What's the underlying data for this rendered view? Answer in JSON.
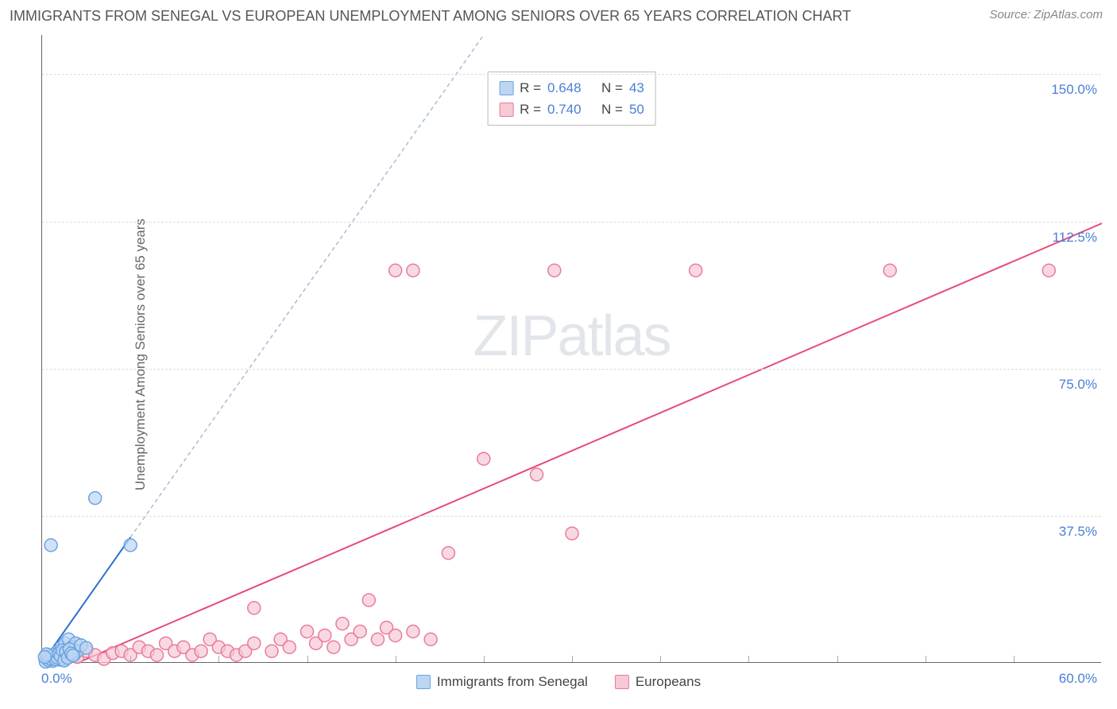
{
  "title": "IMMIGRANTS FROM SENEGAL VS EUROPEAN UNEMPLOYMENT AMONG SENIORS OVER 65 YEARS CORRELATION CHART",
  "source": "Source: ZipAtlas.com",
  "ylabel": "Unemployment Among Seniors over 65 years",
  "watermark_a": "ZIP",
  "watermark_b": "atlas",
  "chart": {
    "type": "scatter",
    "xlim": [
      0,
      60
    ],
    "ylim": [
      0,
      160
    ],
    "x_origin_label": "0.0%",
    "x_max_label": "60.0%",
    "y_ticks": [
      37.5,
      75.0,
      112.5,
      150.0
    ],
    "y_tick_labels": [
      "37.5%",
      "75.0%",
      "112.5%",
      "150.0%"
    ],
    "x_minor_ticks": [
      5,
      10,
      15,
      20,
      25,
      30,
      35,
      40,
      45,
      50,
      55
    ],
    "background_color": "#ffffff",
    "grid_color": "#dddddd",
    "axis_color": "#666666",
    "tick_label_color": "#4a7fd6",
    "marker_radius": 8,
    "marker_stroke_width": 1.5,
    "trend_line_width": 2
  },
  "series": [
    {
      "name": "Immigrants from Senegal",
      "color_fill": "#bcd6f2",
      "color_stroke": "#6aa3e0",
      "trend_color": "#2f6fd1",
      "trend_dash": "5 4",
      "trend_ext": {
        "x1": 0,
        "y1": 0,
        "x2": 25,
        "y2": 160
      },
      "trend_solid_to": {
        "x": 5,
        "y": 32
      },
      "R": "0.648",
      "N": "43",
      "points": [
        {
          "x": 0.3,
          "y": 1
        },
        {
          "x": 0.5,
          "y": 2
        },
        {
          "x": 0.7,
          "y": 1.5
        },
        {
          "x": 0.9,
          "y": 3
        },
        {
          "x": 1.0,
          "y": 2
        },
        {
          "x": 1.1,
          "y": 4
        },
        {
          "x": 1.2,
          "y": 1
        },
        {
          "x": 1.3,
          "y": 5
        },
        {
          "x": 1.4,
          "y": 2
        },
        {
          "x": 1.5,
          "y": 6
        },
        {
          "x": 1.6,
          "y": 3
        },
        {
          "x": 1.7,
          "y": 4
        },
        {
          "x": 1.8,
          "y": 2
        },
        {
          "x": 1.9,
          "y": 5
        },
        {
          "x": 2.0,
          "y": 3
        },
        {
          "x": 0.6,
          "y": 0.5
        },
        {
          "x": 0.8,
          "y": 1.2
        },
        {
          "x": 1.0,
          "y": 0.8
        },
        {
          "x": 1.2,
          "y": 2.5
        },
        {
          "x": 0.4,
          "y": 1.8
        },
        {
          "x": 0.5,
          "y": 30
        },
        {
          "x": 3.0,
          "y": 42
        },
        {
          "x": 5.0,
          "y": 30
        },
        {
          "x": 0.2,
          "y": 0.3
        },
        {
          "x": 0.35,
          "y": 0.7
        },
        {
          "x": 0.45,
          "y": 1.1
        },
        {
          "x": 0.55,
          "y": 1.6
        },
        {
          "x": 0.65,
          "y": 2.1
        },
        {
          "x": 0.75,
          "y": 0.9
        },
        {
          "x": 0.85,
          "y": 1.4
        },
        {
          "x": 0.95,
          "y": 2.3
        },
        {
          "x": 1.05,
          "y": 1.7
        },
        {
          "x": 1.15,
          "y": 3.2
        },
        {
          "x": 1.25,
          "y": 0.6
        },
        {
          "x": 1.35,
          "y": 2.8
        },
        {
          "x": 1.45,
          "y": 1.3
        },
        {
          "x": 1.55,
          "y": 3.5
        },
        {
          "x": 1.65,
          "y": 2.4
        },
        {
          "x": 1.75,
          "y": 1.9
        },
        {
          "x": 0.25,
          "y": 2.2
        },
        {
          "x": 0.15,
          "y": 1.5
        },
        {
          "x": 2.2,
          "y": 4.5
        },
        {
          "x": 2.5,
          "y": 3.8
        }
      ]
    },
    {
      "name": "Europeans",
      "color_fill": "#f7c9d4",
      "color_stroke": "#ea7a9a",
      "trend_color": "#e84a7a",
      "trend_dash": "",
      "trend": {
        "x1": 2,
        "y1": 0,
        "x2": 60,
        "y2": 112
      },
      "R": "0.740",
      "N": "50",
      "points": [
        {
          "x": 1,
          "y": 1
        },
        {
          "x": 1.5,
          "y": 2
        },
        {
          "x": 2,
          "y": 1.5
        },
        {
          "x": 2.5,
          "y": 3
        },
        {
          "x": 3,
          "y": 2
        },
        {
          "x": 3.5,
          "y": 1
        },
        {
          "x": 4,
          "y": 2.5
        },
        {
          "x": 4.5,
          "y": 3
        },
        {
          "x": 5,
          "y": 2
        },
        {
          "x": 5.5,
          "y": 4
        },
        {
          "x": 6,
          "y": 3
        },
        {
          "x": 6.5,
          "y": 2
        },
        {
          "x": 7,
          "y": 5
        },
        {
          "x": 7.5,
          "y": 3
        },
        {
          "x": 8,
          "y": 4
        },
        {
          "x": 8.5,
          "y": 2
        },
        {
          "x": 9,
          "y": 3
        },
        {
          "x": 9.5,
          "y": 6
        },
        {
          "x": 10,
          "y": 4
        },
        {
          "x": 10.5,
          "y": 3
        },
        {
          "x": 11,
          "y": 2
        },
        {
          "x": 11.5,
          "y": 3
        },
        {
          "x": 12,
          "y": 5
        },
        {
          "x": 12,
          "y": 14
        },
        {
          "x": 13,
          "y": 3
        },
        {
          "x": 13.5,
          "y": 6
        },
        {
          "x": 14,
          "y": 4
        },
        {
          "x": 15,
          "y": 8
        },
        {
          "x": 15.5,
          "y": 5
        },
        {
          "x": 16,
          "y": 7
        },
        {
          "x": 16.5,
          "y": 4
        },
        {
          "x": 17,
          "y": 10
        },
        {
          "x": 17.5,
          "y": 6
        },
        {
          "x": 18,
          "y": 8
        },
        {
          "x": 18.5,
          "y": 16
        },
        {
          "x": 19,
          "y": 6
        },
        {
          "x": 19.5,
          "y": 9
        },
        {
          "x": 20,
          "y": 7
        },
        {
          "x": 20,
          "y": 100
        },
        {
          "x": 21,
          "y": 8
        },
        {
          "x": 21,
          "y": 100
        },
        {
          "x": 22,
          "y": 6
        },
        {
          "x": 23,
          "y": 28
        },
        {
          "x": 25,
          "y": 52
        },
        {
          "x": 28,
          "y": 48
        },
        {
          "x": 29,
          "y": 100
        },
        {
          "x": 30,
          "y": 33
        },
        {
          "x": 37,
          "y": 100
        },
        {
          "x": 48,
          "y": 100
        },
        {
          "x": 57,
          "y": 100
        }
      ]
    }
  ],
  "legend": {
    "series1_label": "Immigrants from Senegal",
    "series2_label": "Europeans"
  },
  "stats_labels": {
    "R": "R =",
    "N": "N ="
  }
}
